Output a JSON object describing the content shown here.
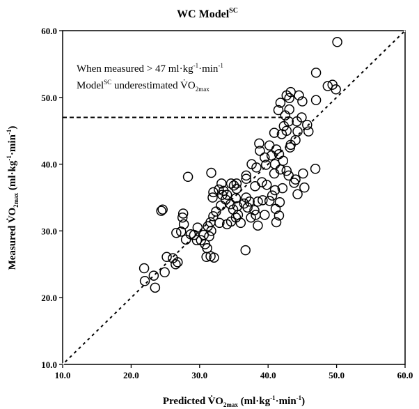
{
  "chart_data": {
    "type": "scatter",
    "title": {
      "main": "WC Model",
      "sup": "SC"
    },
    "xlabel": {
      "pre": "Predicted V̇O",
      "sub": "2max",
      "post": " (ml·kg",
      "sup1": "-1",
      "mid": "·min",
      "sup2": "-1",
      "end": ")"
    },
    "ylabel": {
      "pre": "Measured V̇O",
      "sub": "2max",
      "post": " (ml·kg",
      "sup1": "-1",
      "mid": "·min",
      "sup2": "-1",
      "end": ")"
    },
    "xlim": [
      10,
      60
    ],
    "ylim": [
      10,
      60
    ],
    "x_ticks": [
      "10.0",
      "20.0",
      "30.0",
      "40.0",
      "50.0",
      "60.0"
    ],
    "y_ticks": [
      "10.0",
      "20.0",
      "30.0",
      "40.0",
      "50.0",
      "60.0"
    ],
    "annotation": {
      "line1": "When measured > 47 ml·kg",
      "line1_sup1": "-1",
      "line1_mid": "·min",
      "line1_sup2": "-1",
      "line2_pre": "Model",
      "line2_sup": "SC",
      "line2_mid": " underestimated V̇O",
      "line2_sub": "2max"
    },
    "identity_line": {
      "from": [
        10,
        10
      ],
      "to": [
        60,
        60
      ],
      "style": "solid"
    },
    "regression_line": {
      "from": [
        10,
        10
      ],
      "to": [
        60,
        60
      ],
      "style": "dashed"
    },
    "threshold_line": {
      "y": 47,
      "x_from": 10,
      "x_to": 43.5,
      "style": "dashed"
    },
    "points": [
      [
        50.1,
        58.3
      ],
      [
        47.0,
        53.7
      ],
      [
        48.7,
        51.7
      ],
      [
        49.4,
        51.9
      ],
      [
        49.9,
        51.2
      ],
      [
        43.3,
        50.8
      ],
      [
        43.1,
        49.9
      ],
      [
        42.7,
        50.3
      ],
      [
        44.5,
        50.3
      ],
      [
        45.0,
        49.4
      ],
      [
        47.0,
        49.6
      ],
      [
        41.8,
        49.2
      ],
      [
        41.5,
        48.1
      ],
      [
        43.1,
        48.2
      ],
      [
        42.5,
        47.3
      ],
      [
        44.9,
        47.0
      ],
      [
        45.7,
        45.9
      ],
      [
        44.2,
        46.4
      ],
      [
        43.0,
        46.4
      ],
      [
        42.3,
        45.7
      ],
      [
        42.7,
        45.0
      ],
      [
        42.0,
        44.5
      ],
      [
        44.3,
        44.9
      ],
      [
        45.9,
        44.9
      ],
      [
        44.0,
        43.6
      ],
      [
        43.3,
        42.9
      ],
      [
        40.9,
        44.7
      ],
      [
        43.2,
        42.5
      ],
      [
        41.2,
        42.2
      ],
      [
        40.2,
        42.8
      ],
      [
        38.7,
        43.1
      ],
      [
        38.8,
        42.0
      ],
      [
        40.5,
        41.3
      ],
      [
        39.5,
        41.0
      ],
      [
        41.6,
        41.5
      ],
      [
        42.2,
        40.5
      ],
      [
        41.0,
        40.0
      ],
      [
        39.7,
        39.9
      ],
      [
        37.6,
        40.0
      ],
      [
        38.3,
        39.5
      ],
      [
        41.8,
        39.2
      ],
      [
        40.9,
        38.6
      ],
      [
        42.7,
        39.0
      ],
      [
        43.0,
        38.3
      ],
      [
        44.0,
        37.7
      ],
      [
        45.1,
        38.6
      ],
      [
        46.9,
        39.3
      ],
      [
        43.8,
        37.2
      ],
      [
        39.1,
        37.3
      ],
      [
        36.8,
        37.8
      ],
      [
        36.8,
        38.3
      ],
      [
        38.1,
        36.7
      ],
      [
        39.8,
        36.9
      ],
      [
        42.1,
        36.4
      ],
      [
        41.0,
        36.1
      ],
      [
        44.3,
        35.5
      ],
      [
        45.3,
        36.5
      ],
      [
        40.6,
        35.3
      ],
      [
        41.7,
        34.3
      ],
      [
        41.1,
        33.3
      ],
      [
        40.2,
        34.5
      ],
      [
        38.5,
        34.4
      ],
      [
        39.2,
        34.6
      ],
      [
        37.3,
        34.4
      ],
      [
        36.8,
        35.0
      ],
      [
        36.5,
        34.1
      ],
      [
        37.0,
        33.5
      ],
      [
        38.0,
        33.1
      ],
      [
        38.2,
        32.4
      ],
      [
        37.5,
        32.0
      ],
      [
        39.5,
        32.4
      ],
      [
        41.6,
        32.3
      ],
      [
        41.2,
        31.3
      ],
      [
        38.5,
        30.8
      ],
      [
        36.0,
        31.2
      ],
      [
        35.3,
        32.0
      ],
      [
        35.6,
        32.4
      ],
      [
        34.6,
        31.4
      ],
      [
        35.5,
        33.7
      ],
      [
        35.3,
        34.9
      ],
      [
        35.4,
        36.3
      ],
      [
        35.4,
        37.1
      ],
      [
        34.6,
        37.1
      ],
      [
        33.2,
        37.1
      ],
      [
        32.8,
        36.2
      ],
      [
        32.0,
        35.8
      ],
      [
        31.9,
        35.0
      ],
      [
        33.3,
        35.4
      ],
      [
        33.8,
        34.7
      ],
      [
        34.5,
        34.0
      ],
      [
        34.9,
        33.2
      ],
      [
        33.1,
        33.8
      ],
      [
        32.4,
        32.9
      ],
      [
        32.0,
        32.2
      ],
      [
        32.9,
        31.2
      ],
      [
        34.0,
        31.0
      ],
      [
        31.6,
        31.3
      ],
      [
        31.2,
        30.7
      ],
      [
        31.7,
        30.0
      ],
      [
        31.4,
        29.2
      ],
      [
        30.6,
        29.4
      ],
      [
        30.2,
        28.6
      ],
      [
        31.1,
        27.4
      ],
      [
        31.0,
        26.1
      ],
      [
        31.6,
        26.2
      ],
      [
        32.1,
        26.0
      ],
      [
        30.8,
        28.0
      ],
      [
        29.6,
        28.6
      ],
      [
        29.2,
        29.4
      ],
      [
        29.7,
        30.5
      ],
      [
        28.7,
        29.5
      ],
      [
        28.0,
        28.7
      ],
      [
        27.3,
        29.9
      ],
      [
        27.7,
        31.0
      ],
      [
        27.5,
        32.0
      ],
      [
        27.6,
        32.6
      ],
      [
        26.6,
        29.7
      ],
      [
        26.8,
        25.3
      ],
      [
        26.5,
        25.0
      ],
      [
        26.1,
        25.9
      ],
      [
        24.9,
        23.8
      ],
      [
        25.2,
        26.1
      ],
      [
        24.6,
        33.2
      ],
      [
        24.4,
        33.0
      ],
      [
        23.5,
        21.5
      ],
      [
        23.3,
        23.3
      ],
      [
        21.9,
        24.4
      ],
      [
        22.0,
        22.5
      ],
      [
        31.7,
        38.7
      ],
      [
        28.3,
        38.1
      ],
      [
        33.5,
        36.0
      ],
      [
        36.7,
        27.1
      ],
      [
        34.0,
        35.4
      ],
      [
        35.0,
        36.8
      ]
    ]
  }
}
